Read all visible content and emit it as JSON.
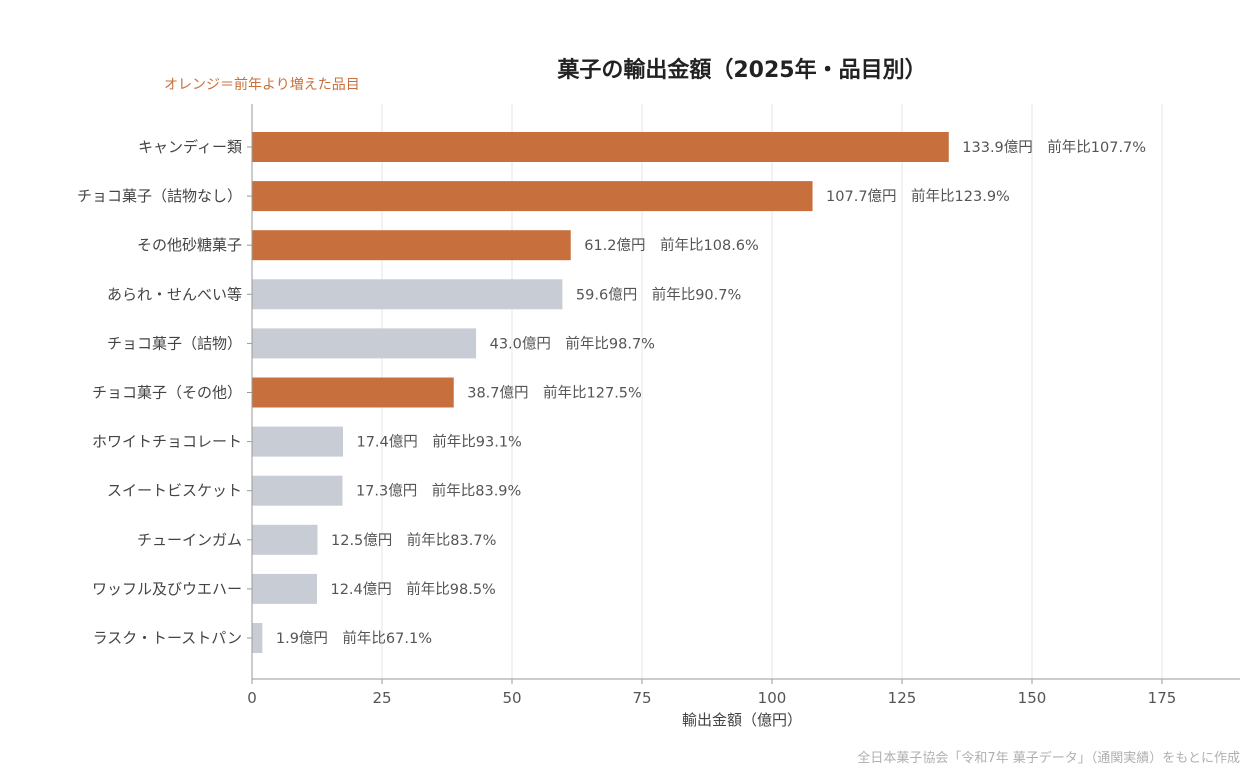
{
  "chart_data": {
    "type": "bar",
    "orientation": "horizontal",
    "title": "菓子の輸出金額（2025年・品目別）",
    "legend_note": "オレンジ＝前年より増えた品目",
    "xlabel": "輸出金額（億円）",
    "ylabel": "",
    "xlim": [
      0,
      190
    ],
    "xticks": [
      0,
      25,
      50,
      75,
      100,
      125,
      150,
      175
    ],
    "grid": true,
    "colors": {
      "increase": "#C8703D",
      "decrease": "#C8CCD5"
    },
    "categories": [
      "キャンディー類",
      "チョコ菓子（詰物なし）",
      "その他砂糖菓子",
      "あられ・せんべい等",
      "チョコ菓子（詰物）",
      "チョコ菓子（その他）",
      "ホワイトチョコレート",
      "スイートビスケット",
      "チューインガム",
      "ワッフル及びウエハー",
      "ラスク・トーストパン"
    ],
    "values": [
      133.9,
      107.7,
      61.2,
      59.6,
      43.0,
      38.7,
      17.4,
      17.3,
      12.5,
      12.4,
      1.9
    ],
    "increased": [
      true,
      true,
      true,
      false,
      false,
      true,
      false,
      false,
      false,
      false,
      false
    ],
    "data_labels": [
      "133.9億円　前年比107.7%",
      "107.7億円　前年比123.9%",
      "61.2億円　前年比108.6%",
      "59.6億円　前年比90.7%",
      "43.0億円　前年比98.7%",
      "38.7億円　前年比127.5%",
      "17.4億円　前年比93.1%",
      "17.3億円　前年比83.9%",
      "12.5億円　前年比83.7%",
      "12.4億円　前年比98.5%",
      "1.9億円　前年比67.1%"
    ],
    "source": "全日本菓子協会「令和7年 菓子データ」（通関実績）をもとに作成"
  }
}
